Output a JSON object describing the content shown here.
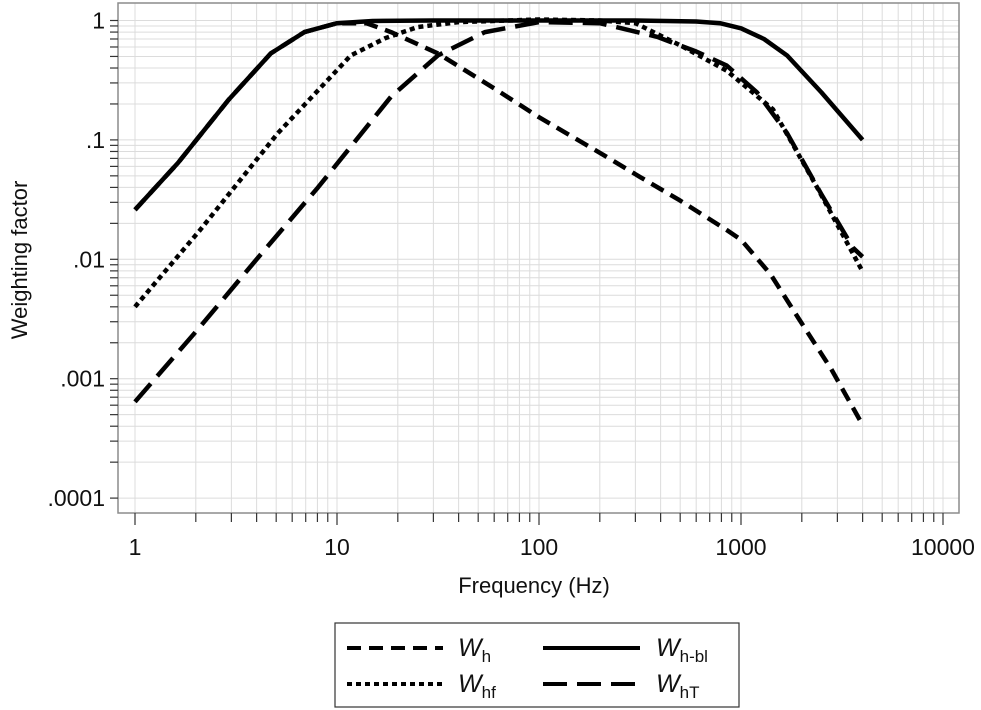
{
  "chart_data": {
    "type": "line",
    "title": "",
    "xlabel": "Frequency (Hz)",
    "ylabel": "Weighting factor",
    "xscale": "log",
    "yscale": "log",
    "xlim": [
      1,
      10000
    ],
    "ylim": [
      0.0001,
      1
    ],
    "x_ticks": [
      {
        "value": 1,
        "label": "1"
      },
      {
        "value": 10,
        "label": "10"
      },
      {
        "value": 100,
        "label": "100"
      },
      {
        "value": 1000,
        "label": "1000"
      },
      {
        "value": 10000,
        "label": "10000"
      }
    ],
    "y_ticks": [
      {
        "value": 1,
        "label": "1"
      },
      {
        "value": 0.1,
        "label": ".1"
      },
      {
        "value": 0.01,
        "label": ".01"
      },
      {
        "value": 0.001,
        "label": ".001"
      },
      {
        "value": 0.0001,
        "label": ".0001"
      }
    ],
    "grid": true,
    "legend_placement": "bottom",
    "series": [
      {
        "name": "Wh",
        "name_main": "W",
        "name_sub": "h",
        "style": "dashed",
        "x": [
          1,
          1.63,
          2.9,
          4.7,
          6.9,
          10,
          14,
          18.5,
          31.6,
          60,
          100,
          200,
          316,
          500,
          850,
          1000,
          1400,
          1950,
          2800,
          4000
        ],
        "y": [
          0.026,
          0.064,
          0.216,
          0.53,
          0.8,
          0.95,
          0.95,
          0.8,
          0.53,
          0.27,
          0.155,
          0.078,
          0.049,
          0.031,
          0.0176,
          0.0146,
          0.0075,
          0.0031,
          0.0012,
          0.00041
        ]
      },
      {
        "name": "Wh-bl",
        "name_main": "W",
        "name_sub": "h-bl",
        "style": "solid",
        "x": [
          1,
          1.63,
          2.9,
          4.7,
          6.9,
          10,
          15,
          30,
          100,
          300,
          600,
          787,
          1000,
          1300,
          1690,
          2500,
          4000
        ],
        "y": [
          0.026,
          0.064,
          0.216,
          0.53,
          0.8,
          0.95,
          0.99,
          1.0,
          1.0,
          1.0,
          0.98,
          0.95,
          0.86,
          0.7,
          0.51,
          0.25,
          0.1
        ]
      },
      {
        "name": "Whf",
        "name_main": "W",
        "name_sub": "hf",
        "style": "dotted",
        "x": [
          1,
          2.1,
          5.1,
          8.05,
          11.7,
          17.3,
          25,
          40,
          100,
          200,
          300,
          500,
          850,
          1440,
          2380,
          4000
        ],
        "y": [
          0.004,
          0.0176,
          0.114,
          0.26,
          0.51,
          0.71,
          0.88,
          0.97,
          1.02,
          1.0,
          0.95,
          0.62,
          0.38,
          0.18,
          0.04,
          0.0079
        ]
      },
      {
        "name": "WhT",
        "name_main": "W",
        "name_sub": "hT",
        "style": "long-dashed",
        "x": [
          1,
          2.05,
          4,
          8.05,
          18.5,
          31.6,
          54,
          100,
          200,
          384,
          600,
          850,
          1200,
          1690,
          2500,
          3580,
          4000
        ],
        "y": [
          0.00064,
          0.0026,
          0.01,
          0.04,
          0.23,
          0.51,
          0.8,
          0.97,
          0.95,
          0.73,
          0.55,
          0.42,
          0.25,
          0.114,
          0.035,
          0.0125,
          0.0105
        ]
      }
    ]
  },
  "colors": {
    "line": "#000000",
    "grid": "#dcdcdc",
    "frame": "#8c8c8c"
  }
}
